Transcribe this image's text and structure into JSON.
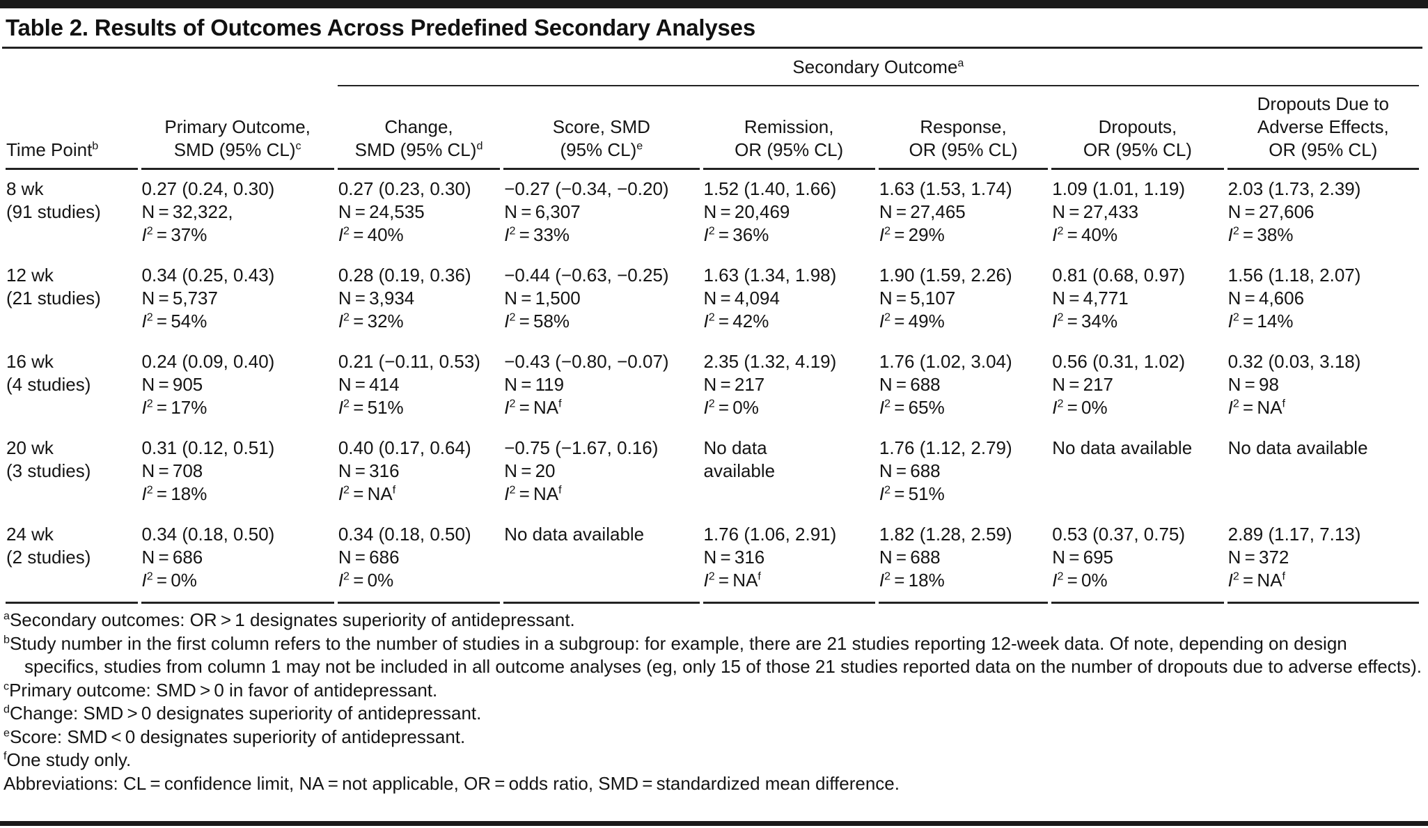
{
  "page": {
    "title": "Table 2. Results of Outcomes Across Predefined Secondary Analyses"
  },
  "table": {
    "spanner": "Secondary Outcome^a",
    "columns": [
      {
        "id": "time-point",
        "label": "Time Point^b"
      },
      {
        "id": "primary-outcome",
        "label": "Primary Outcome,\nSMD (95% CL)^c"
      },
      {
        "id": "change",
        "label": "Change,\nSMD (95% CL)^d"
      },
      {
        "id": "score",
        "label": "Score, SMD\n(95% CL)^e"
      },
      {
        "id": "remission",
        "label": "Remission,\nOR (95% CL)"
      },
      {
        "id": "response",
        "label": "Response,\nOR (95% CL)"
      },
      {
        "id": "dropouts",
        "label": "Dropouts,\nOR (95% CL)"
      },
      {
        "id": "dropouts-ae",
        "label": "Dropouts Due to\nAdverse Effects,\nOR (95% CL)"
      }
    ],
    "rows": [
      {
        "time": "8 wk\n(91 studies)",
        "cells": [
          "0.27 (0.24, 0.30)\nN = 32,322,\nI2 = 37%",
          "0.27 (0.23, 0.30)\nN = 24,535\nI2 = 40%",
          "−0.27 (−0.34, −0.20)\nN = 6,307\nI2 = 33%",
          "1.52 (1.40, 1.66)\nN = 20,469\nI2 = 36%",
          "1.63 (1.53, 1.74)\nN = 27,465\nI2 = 29%",
          "1.09 (1.01, 1.19)\nN = 27,433\nI2 = 40%",
          "2.03 (1.73, 2.39)\nN = 27,606\nI2 = 38%"
        ]
      },
      {
        "time": "12 wk\n(21 studies)",
        "cells": [
          "0.34 (0.25, 0.43)\nN = 5,737\nI2 = 54%",
          "0.28 (0.19, 0.36)\nN = 3,934\nI2 = 32%",
          "−0.44 (−0.63, −0.25)\nN = 1,500\nI2 = 58%",
          "1.63 (1.34, 1.98)\nN = 4,094\nI2 = 42%",
          "1.90 (1.59, 2.26)\nN = 5,107\nI2 = 49%",
          "0.81 (0.68, 0.97)\nN = 4,771\nI2 = 34%",
          "1.56 (1.18, 2.07)\nN = 4,606\nI2 = 14%"
        ]
      },
      {
        "time": "16 wk\n(4 studies)",
        "cells": [
          "0.24 (0.09, 0.40)\nN = 905\nI2 = 17%",
          "0.21 (−0.11, 0.53)\nN = 414\nI2 = 51%",
          "−0.43 (−0.80, −0.07)\nN = 119\nI2 = NA^f",
          "2.35 (1.32, 4.19)\nN = 217\nI2 = 0%",
          "1.76 (1.02, 3.04)\nN = 688\nI2 = 65%",
          "0.56 (0.31, 1.02)\nN = 217\nI2 = 0%",
          "0.32 (0.03, 3.18)\nN = 98\nI2 = NA^f"
        ]
      },
      {
        "time": "20 wk\n(3 studies)",
        "cells": [
          "0.31 (0.12, 0.51)\nN = 708\nI2 = 18%",
          "0.40 (0.17, 0.64)\nN = 316\nI2 = NA^f",
          "−0.75 (−1.67, 0.16)\nN = 20\nI2 = NA^f",
          "No data\navailable",
          "1.76 (1.12, 2.79)\nN = 688\nI2 = 51%",
          "No data available",
          "No data available"
        ]
      },
      {
        "time": "24 wk\n(2 studies)",
        "cells": [
          "0.34 (0.18, 0.50)\nN = 686\nI2 = 0%",
          "0.34 (0.18, 0.50)\nN = 686\nI2 = 0%",
          "No data available",
          "1.76 (1.06, 2.91)\nN = 316\nI2 = NA^f",
          "1.82 (1.28, 2.59)\nN = 688\nI2 = 18%",
          "0.53 (0.37, 0.75)\nN = 695\nI2 = 0%",
          "2.89 (1.17, 7.13)\nN = 372\nI2 = NA^f"
        ]
      }
    ]
  },
  "footnotes": [
    {
      "sup": "a",
      "text": "Secondary outcomes: OR > 1 designates superiority of antidepressant."
    },
    {
      "sup": "b",
      "text": "Study number in the first column refers to the number of studies in a subgroup: for example, there are 21 studies reporting 12-week data. Of note, depending on design specifics, studies from column 1 may not be included in all outcome analyses (eg, only 15 of those 21 studies reported data on the number of dropouts due to adverse effects)."
    },
    {
      "sup": "c",
      "text": "Primary outcome: SMD > 0 in favor of antidepressant."
    },
    {
      "sup": "d",
      "text": "Change: SMD > 0 designates superiority of antidepressant."
    },
    {
      "sup": "e",
      "text": "Score: SMD < 0 designates superiority of antidepressant."
    },
    {
      "sup": "f",
      "text": "One study only."
    },
    {
      "sup": "",
      "text": "Abbreviations: CL = confidence limit, NA = not applicable, OR = odds ratio, SMD = standardized mean difference."
    }
  ]
}
